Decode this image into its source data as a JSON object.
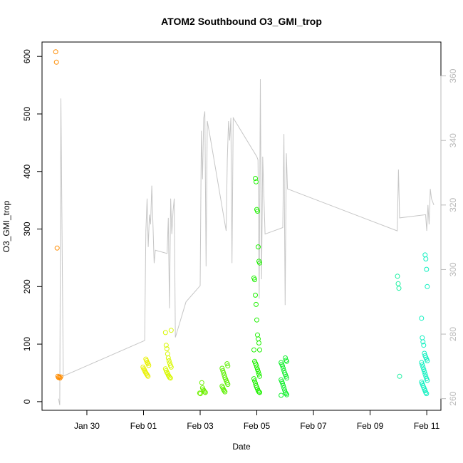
{
  "chart_data": {
    "type": "scatter",
    "title": "ATOM2 Southbound O3_GMI_trop",
    "xlabel": "Date",
    "ylabel": "O3_GMI_trop",
    "xlim": [
      "2017-01-28T10:00",
      "2017-02-11T12:00"
    ],
    "ylim": [
      -15,
      625
    ],
    "y_ticks": [
      0,
      100,
      200,
      300,
      400,
      500,
      600
    ],
    "x_ticks": [
      {
        "date": "2017-01-30",
        "label": "Jan 30"
      },
      {
        "date": "2017-02-01",
        "label": "Feb 01"
      },
      {
        "date": "2017-02-03",
        "label": "Feb 03"
      },
      {
        "date": "2017-02-05",
        "label": "Feb 05"
      },
      {
        "date": "2017-02-07",
        "label": "Feb 07"
      },
      {
        "date": "2017-02-09",
        "label": "Feb 09"
      },
      {
        "date": "2017-02-11",
        "label": "Feb 11"
      }
    ],
    "y2_ticks": [
      260,
      280,
      300,
      320,
      340,
      360
    ],
    "y2lim": [
      256.4,
      370.5
    ],
    "grid": false,
    "colors": {
      "secondary_line": "#c6c6c6",
      "axis": "#000000",
      "axis2": "#b8b8b8"
    },
    "point_groups": [
      {
        "date": "2017-01-29T00:00",
        "color": "#ff8c00",
        "values": [
          608,
          590,
          267,
          44,
          42,
          43,
          41,
          43
        ]
      },
      {
        "date": "2017-02-01T02:00",
        "color": "#e8f000",
        "values": [
          74,
          71,
          68,
          66,
          63,
          60,
          57,
          55,
          52,
          50,
          48,
          46,
          44
        ]
      },
      {
        "date": "2017-02-01T21:00",
        "color": "#d8f800",
        "values": [
          124,
          120,
          98,
          92,
          83,
          76,
          71,
          67,
          63,
          60,
          57,
          54,
          51,
          49,
          46,
          44,
          42,
          41
        ]
      },
      {
        "date": "2017-02-03T02:00",
        "color": "#6ef000",
        "values": [
          33,
          24,
          21,
          19,
          17,
          16,
          15,
          14
        ]
      },
      {
        "date": "2017-02-03T21:00",
        "color": "#5cf000",
        "values": [
          66,
          62,
          58,
          54,
          50,
          46,
          42,
          39,
          36,
          33,
          30,
          27,
          24,
          21,
          19,
          17
        ]
      },
      {
        "date": "2017-02-05T00:00",
        "color": "#1ef000",
        "values": [
          388,
          382,
          334,
          331,
          269,
          244,
          241,
          215,
          212,
          185,
          169,
          142,
          116,
          109,
          102,
          90,
          90,
          70,
          67,
          64,
          60,
          56,
          52,
          48,
          44,
          40,
          36,
          32,
          28,
          25,
          22,
          19,
          17,
          16
        ]
      },
      {
        "date": "2017-02-05T23:00",
        "color": "#14f030",
        "values": [
          76,
          72,
          70,
          68,
          65,
          62,
          58,
          54,
          50,
          47,
          44,
          41,
          38,
          35,
          32,
          28,
          24,
          20,
          16,
          14,
          12,
          11
        ]
      },
      {
        "date": "2017-02-10T01:00",
        "color": "#18f0a0",
        "values": [
          218,
          205,
          197,
          44
        ]
      },
      {
        "date": "2017-02-10T22:00",
        "color": "#10f0c0",
        "values": [
          255,
          248,
          230,
          200,
          145,
          111,
          104,
          98,
          84,
          80,
          77,
          74,
          71,
          68,
          64,
          60,
          56,
          52,
          48,
          44,
          40,
          37,
          34,
          31,
          28,
          25,
          22,
          19,
          16,
          14
        ]
      }
    ],
    "secondary_series_points": [
      [
        "2017-01-29T00:00",
        260
      ],
      [
        "2017-01-29T01:00",
        258
      ],
      [
        "2017-01-29T02:00",
        353
      ],
      [
        "2017-01-29T04:00",
        267
      ],
      [
        "2017-02-01T01:00",
        278
      ],
      [
        "2017-02-01T02:00",
        312
      ],
      [
        "2017-02-01T03:00",
        322
      ],
      [
        "2017-02-01T04:00",
        307
      ],
      [
        "2017-02-01T05:00",
        317
      ],
      [
        "2017-02-01T06:00",
        314
      ],
      [
        "2017-02-01T07:00",
        326
      ],
      [
        "2017-02-01T09:00",
        302
      ],
      [
        "2017-02-01T10:00",
        306
      ],
      [
        "2017-02-01T20:00",
        305
      ],
      [
        "2017-02-01T21:00",
        316
      ],
      [
        "2017-02-01T22:00",
        288
      ],
      [
        "2017-02-01T23:00",
        322
      ],
      [
        "2017-02-02T00:00",
        311
      ],
      [
        "2017-02-02T01:00",
        318
      ],
      [
        "2017-02-02T02:00",
        322
      ],
      [
        "2017-02-02T03:00",
        279
      ],
      [
        "2017-02-02T12:00",
        290
      ],
      [
        "2017-02-03T00:00",
        295
      ],
      [
        "2017-02-03T01:00",
        343
      ],
      [
        "2017-02-03T02:00",
        328
      ],
      [
        "2017-02-03T03:00",
        347
      ],
      [
        "2017-02-03T04:00",
        349
      ],
      [
        "2017-02-03T05:00",
        301
      ],
      [
        "2017-02-03T06:00",
        346
      ],
      [
        "2017-02-03T08:00",
        342
      ],
      [
        "2017-02-03T22:00",
        312
      ],
      [
        "2017-02-03T23:00",
        334
      ],
      [
        "2017-02-04T00:00",
        346
      ],
      [
        "2017-02-04T01:00",
        340
      ],
      [
        "2017-02-04T02:00",
        347
      ],
      [
        "2017-02-04T03:00",
        302
      ],
      [
        "2017-02-04T04:00",
        347
      ],
      [
        "2017-02-05T00:00",
        335
      ],
      [
        "2017-02-05T01:00",
        334
      ],
      [
        "2017-02-05T02:00",
        291
      ],
      [
        "2017-02-05T03:00",
        359
      ],
      [
        "2017-02-05T04:00",
        297
      ],
      [
        "2017-02-05T05:00",
        335
      ],
      [
        "2017-02-05T07:00",
        311
      ],
      [
        "2017-02-05T22:00",
        313
      ],
      [
        "2017-02-05T23:00",
        342
      ],
      [
        "2017-02-06T00:00",
        289
      ],
      [
        "2017-02-06T01:00",
        336
      ],
      [
        "2017-02-06T02:00",
        325
      ],
      [
        "2017-02-09T23:00",
        312
      ],
      [
        "2017-02-10T00:00",
        331
      ],
      [
        "2017-02-10T01:00",
        316
      ],
      [
        "2017-02-10T23:00",
        317
      ],
      [
        "2017-02-11T00:00",
        312
      ],
      [
        "2017-02-11T01:00",
        320
      ],
      [
        "2017-02-11T02:00",
        314
      ],
      [
        "2017-02-11T03:00",
        325
      ],
      [
        "2017-02-11T04:00",
        322
      ],
      [
        "2017-02-11T06:00",
        320
      ]
    ]
  }
}
